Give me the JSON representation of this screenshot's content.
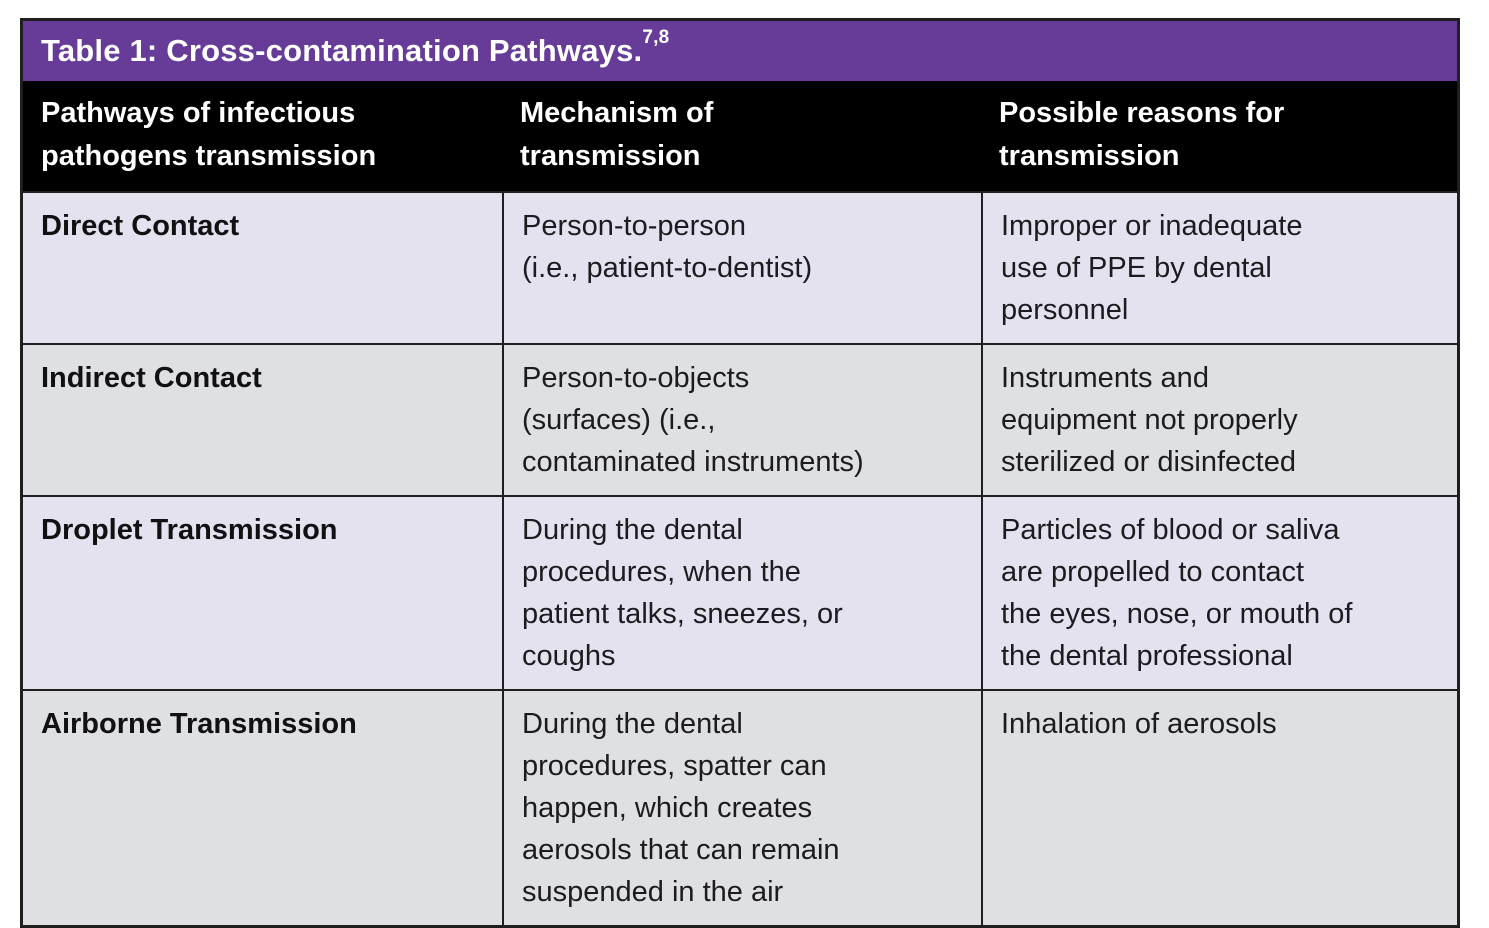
{
  "table": {
    "title": "Table 1: Cross-contamination Pathways.",
    "title_superscript": "7,8",
    "columns": [
      "Pathways of infectious\npathogens transmission",
      "Mechanism of\ntransmission",
      "Possible reasons for\ntransmission"
    ],
    "rows": [
      {
        "pathway": "Direct Contact",
        "mechanism": "Person-to-person\n(i.e., patient-to-dentist)",
        "reasons": "Improper or inadequate\nuse of PPE by dental\npersonnel"
      },
      {
        "pathway": "Indirect Contact",
        "mechanism": "Person-to-objects\n(surfaces) (i.e.,\ncontaminated instruments)",
        "reasons": "Instruments and\nequipment not properly\nsterilized or disinfected"
      },
      {
        "pathway": "Droplet Transmission",
        "mechanism": "During the dental\nprocedures, when the\npatient talks, sneezes, or\ncoughs",
        "reasons": "Particles of blood or saliva\nare propelled to contact\nthe eyes, nose, or mouth of\nthe dental professional"
      },
      {
        "pathway": "Airborne Transmission",
        "mechanism": "During the dental\nprocedures, spatter can\nhappen, which creates\naerosols that can remain\nsuspended in the air",
        "reasons": "Inhalation of aerosols"
      }
    ]
  },
  "colors": {
    "title_bar": "#663c98",
    "header_bg": "#000000",
    "row_odd": "#e5e2f0",
    "row_even": "#dfe0e3",
    "border": "#1f1f1f",
    "header_text": "#ffffff",
    "body_text": "#1c1c1e"
  }
}
